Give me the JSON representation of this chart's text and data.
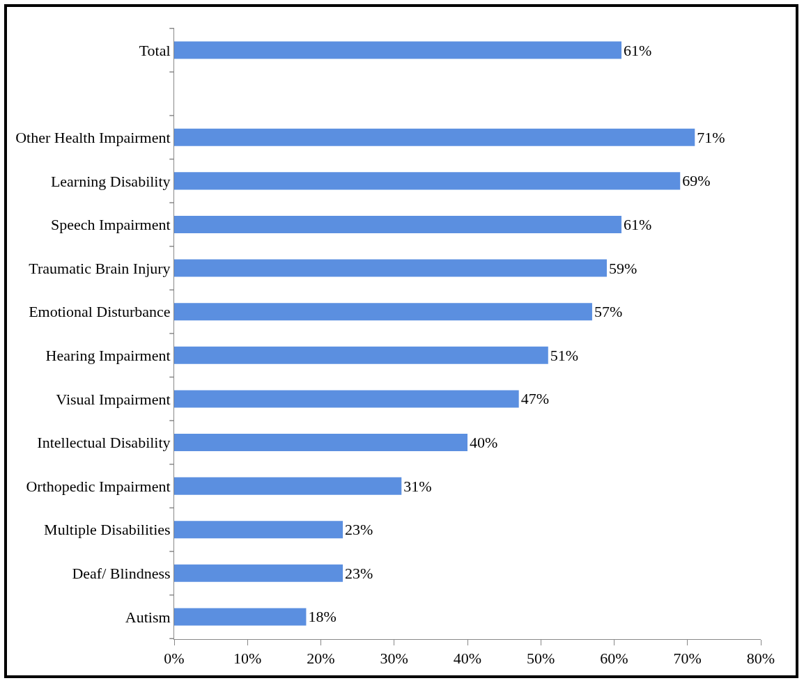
{
  "chart_data": {
    "type": "bar",
    "orientation": "horizontal",
    "categories": [
      "Total",
      null,
      "Other Health Impairment",
      "Learning Disability",
      "Speech Impairment",
      "Traumatic Brain Injury",
      "Emotional Disturbance",
      "Hearing Impairment",
      "Visual Impairment",
      "Intellectual Disability",
      "Orthopedic Impairment",
      "Multiple Disabilities",
      "Deaf/ Blindness",
      "Autism"
    ],
    "values": [
      61,
      null,
      71,
      69,
      61,
      59,
      57,
      51,
      47,
      40,
      31,
      23,
      23,
      18
    ],
    "value_labels": [
      "61%",
      null,
      "71%",
      "69%",
      "61%",
      "59%",
      "57%",
      "51%",
      "47%",
      "40%",
      "31%",
      "23%",
      "23%",
      "18%"
    ],
    "color": "#5b8fe0",
    "xlim": [
      0,
      80
    ],
    "xticks": [
      {
        "value": 0,
        "label": "0%"
      },
      {
        "value": 10,
        "label": "10%"
      },
      {
        "value": 20,
        "label": "20%"
      },
      {
        "value": 30,
        "label": "30%"
      },
      {
        "value": 40,
        "label": "40%"
      },
      {
        "value": 50,
        "label": "50%"
      },
      {
        "value": 60,
        "label": "60%"
      },
      {
        "value": 70,
        "label": "70%"
      },
      {
        "value": 80,
        "label": "80%"
      }
    ],
    "grid": false
  }
}
